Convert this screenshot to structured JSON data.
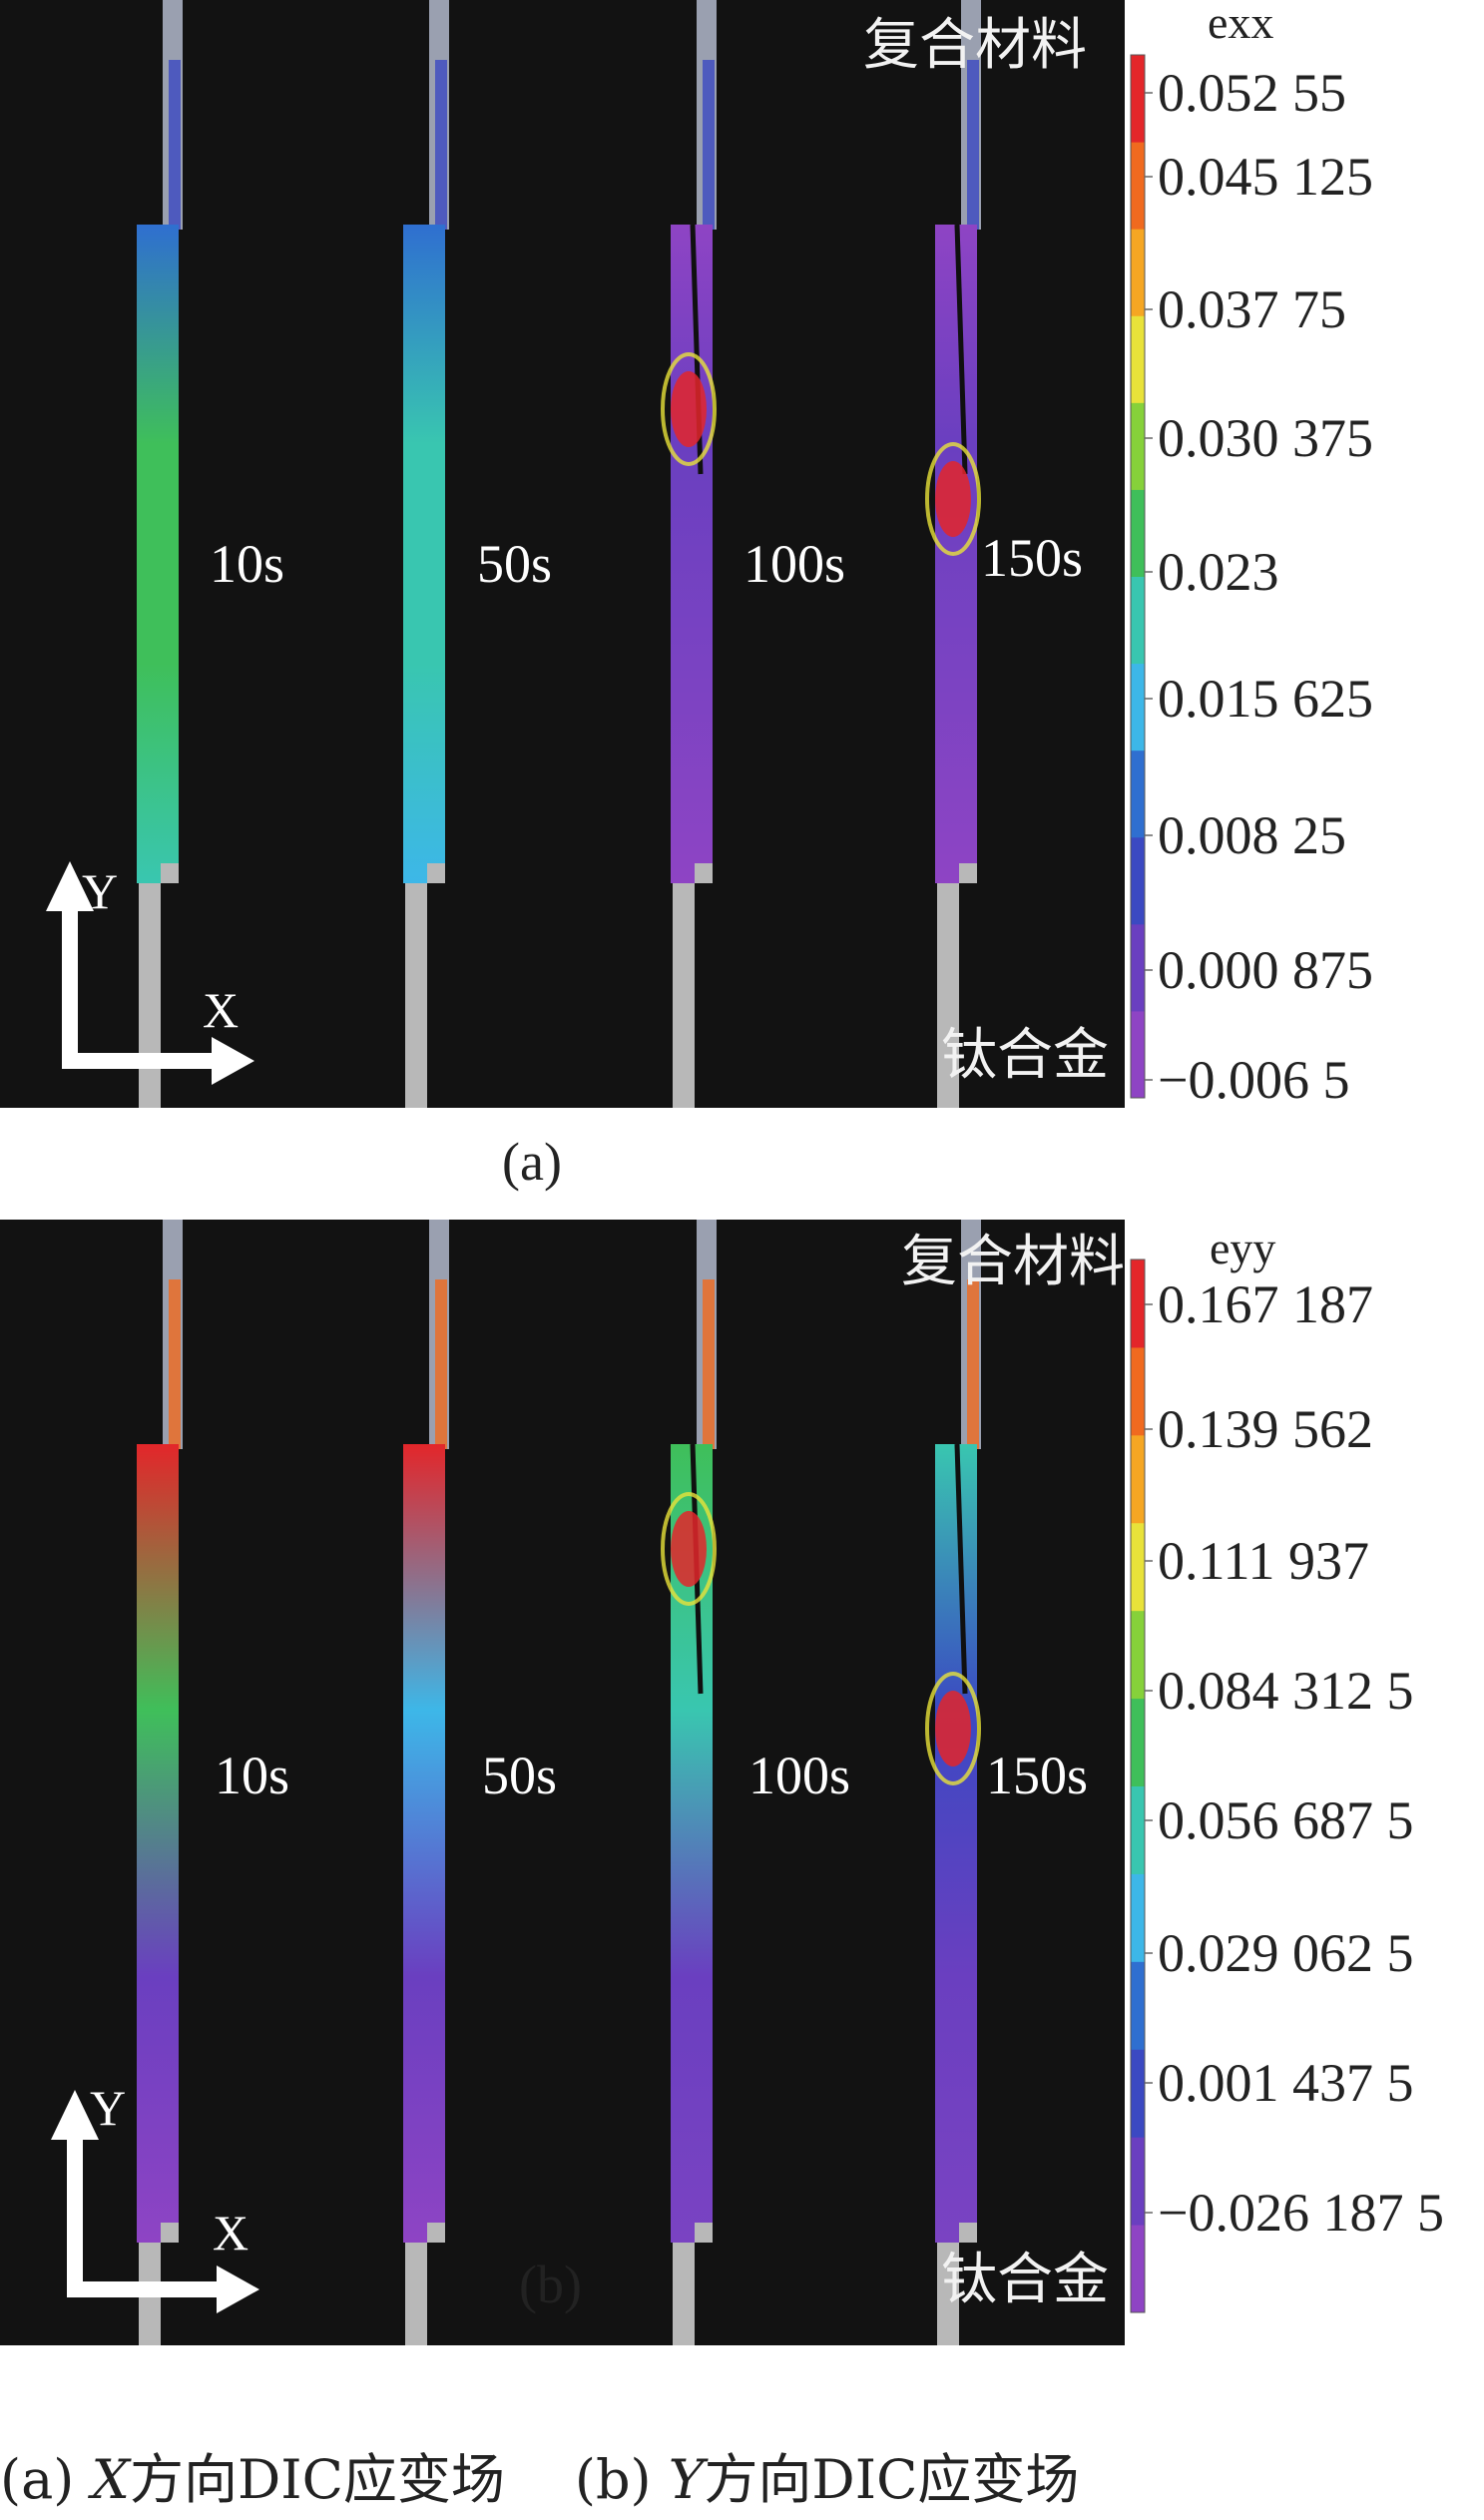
{
  "panels": [
    {
      "tag": "(a)",
      "quantity": "exx",
      "top_material": "复合材料",
      "bottom_material": "钛合金",
      "axis_y": "Y",
      "axis_x": "X",
      "times": [
        "10s",
        "50s",
        "100s",
        "150s"
      ],
      "colorbar_ticks": [
        "0.052 55",
        "0.045 125",
        "0.037 75",
        "0.030 375",
        "0.023",
        "0.015 625",
        "0.008 25",
        "0.000 875",
        "−0.006 5"
      ]
    },
    {
      "tag": "(b)",
      "quantity": "eyy",
      "top_material": "复合材料",
      "bottom_material": "钛合金",
      "axis_y": "Y",
      "axis_x": "X",
      "times": [
        "10s",
        "50s",
        "100s",
        "150s"
      ],
      "colorbar_ticks": [
        "0.167 187",
        "0.139 562",
        "0.111 937",
        "0.084 312 5",
        "0.056 687 5",
        "0.029 062 5",
        "0.001 437 5",
        "−0.026 187 5"
      ]
    }
  ],
  "caption": {
    "a_prefix": "(a) ",
    "a_axis": "X",
    "a_text": "方向DIC应变场",
    "b_prefix": "(b) ",
    "b_axis": "Y",
    "b_text": "方向DIC应变场"
  },
  "colors": {
    "colormap": [
      "#8e44c4",
      "#6a3fc0",
      "#3b49c2",
      "#2f6fd0",
      "#3db7e8",
      "#39c6b0",
      "#3fbf5a",
      "#86d13a",
      "#e8e23a",
      "#f5a623",
      "#f06a1f",
      "#e3262a"
    ],
    "background": "#121212",
    "metal": "#b8b8b8"
  }
}
